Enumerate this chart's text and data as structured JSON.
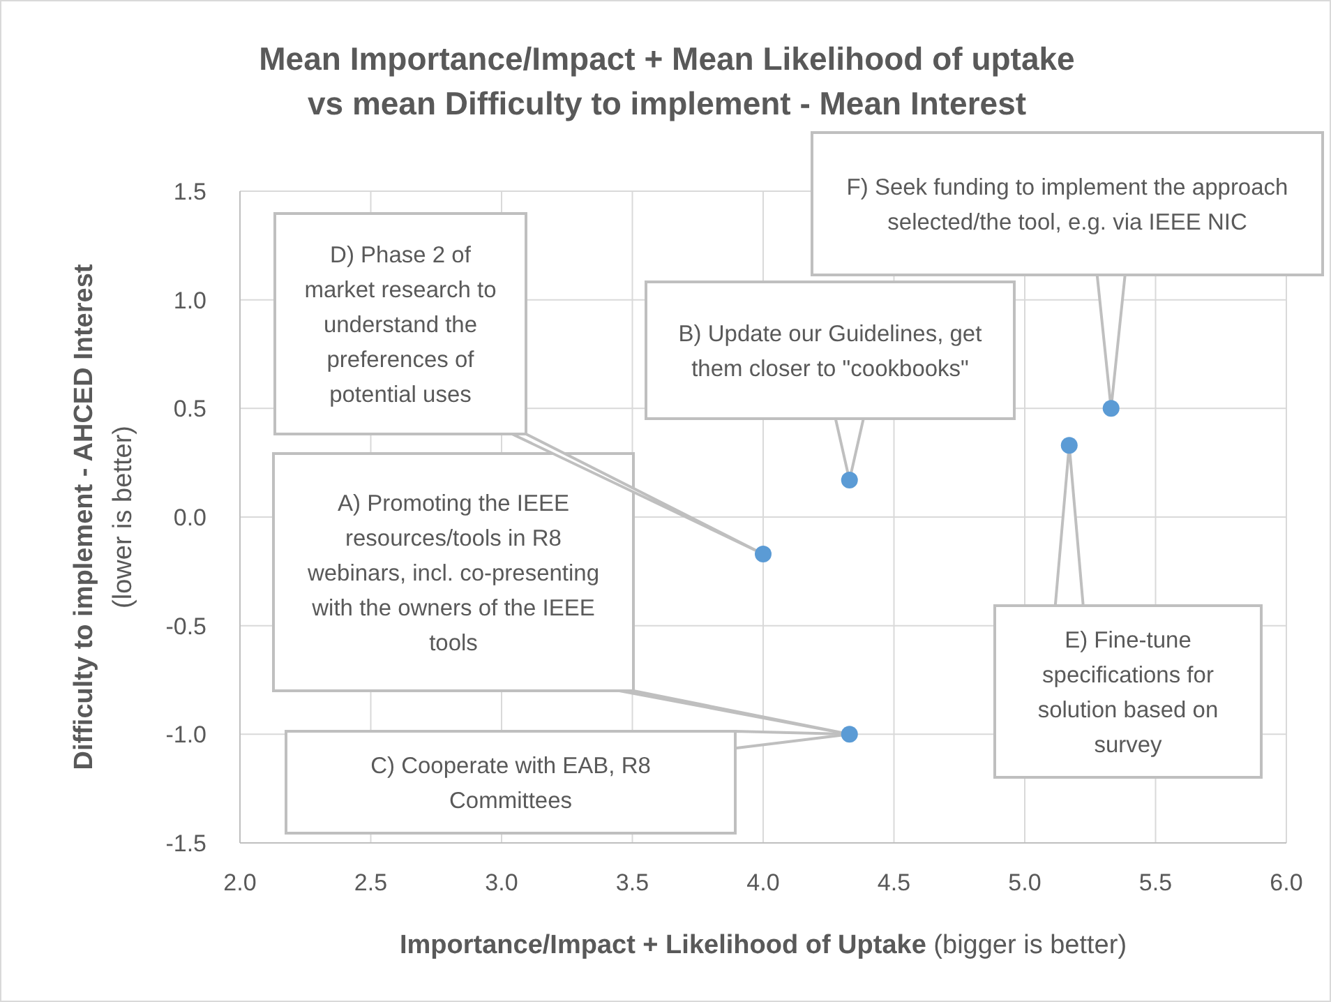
{
  "chart_data": {
    "type": "scatter",
    "title": "Mean Importance/Impact + Mean Likelihood of uptake\nvs mean Difficulty to implement  - Mean Interest",
    "xlabel": "Importance/Impact + Likelihood of Uptake (bigger is better)",
    "ylabel": "Difficulty to implement  - AHCED Interest\n(lower is better)",
    "x": [
      4.0,
      4.33,
      4.33,
      5.17,
      5.33
    ],
    "series": [
      {
        "color": "#5b9bd5",
        "values": [
          -0.17,
          0.17,
          -1.0,
          0.33,
          0.5
        ]
      }
    ],
    "xlim": [
      2.0,
      6.0
    ],
    "xticks": [
      {
        "value": 2,
        "label": "2.0"
      },
      {
        "value": 2.5,
        "label": "2.5"
      },
      {
        "value": 3,
        "label": "3.0"
      },
      {
        "value": 3.5,
        "label": "3.5"
      },
      {
        "value": 4,
        "label": "4.0"
      },
      {
        "value": 4.5,
        "label": "4.5"
      },
      {
        "value": 5,
        "label": "5.0"
      },
      {
        "value": 5.5,
        "label": "5.5"
      },
      {
        "value": 6,
        "label": "6.0"
      }
    ],
    "ylim": [
      -1.5,
      1.5
    ],
    "yticks": [
      {
        "value": -1.5,
        "label": "-1.5"
      },
      {
        "value": -1,
        "label": "-1.0"
      },
      {
        "value": -0.5,
        "label": "-0.5"
      },
      {
        "value": 0,
        "label": "0.0"
      },
      {
        "value": 0.5,
        "label": "0.5"
      },
      {
        "value": 1,
        "label": "1.0"
      },
      {
        "value": 1.5,
        "label": "1.5"
      }
    ],
    "grid": true,
    "marker": "circle",
    "annotations": [
      "A) Promoting the IEEE resources/tools in R8 webinars, incl. co-presenting with the owners of the IEEE tools",
      "B) Update our Guidelines, get them closer to \"cookbooks\"",
      "C) Cooperate with EAB, R8 Committees",
      "D) Phase 2 of market research to understand the preferences of potential uses",
      "E) Fine-tune specifications for solution based on survey",
      "F) Seek funding to implement the approach selected/the tool, e.g. via IEEE NIC"
    ]
  }
}
